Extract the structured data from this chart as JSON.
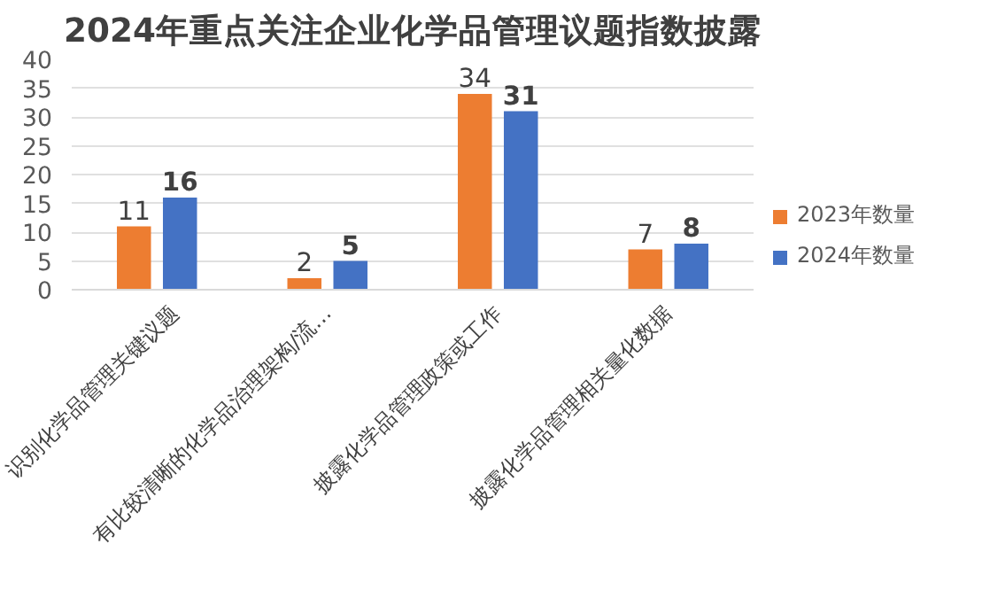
{
  "chart_data": {
    "type": "bar",
    "title": "2024年重点关注企业化学品管理议题指数披露",
    "categories": [
      "识别化学品管理关键议题",
      "有比较清晰的化学品治理架构/流…",
      "披露化学品管理政策或工作",
      "披露化学品管理相关量化数据"
    ],
    "series": [
      {
        "name": "2023年数量",
        "color": "#ed7d31",
        "values": [
          11,
          2,
          34,
          7
        ]
      },
      {
        "name": "2024年数量",
        "color": "#4472c4",
        "values": [
          16,
          5,
          31,
          8
        ]
      }
    ],
    "ylim": [
      0,
      40
    ],
    "yticks": [
      0,
      5,
      10,
      15,
      20,
      25,
      30,
      35,
      40
    ],
    "grid": "y",
    "legend": "right",
    "data_labels": true
  }
}
